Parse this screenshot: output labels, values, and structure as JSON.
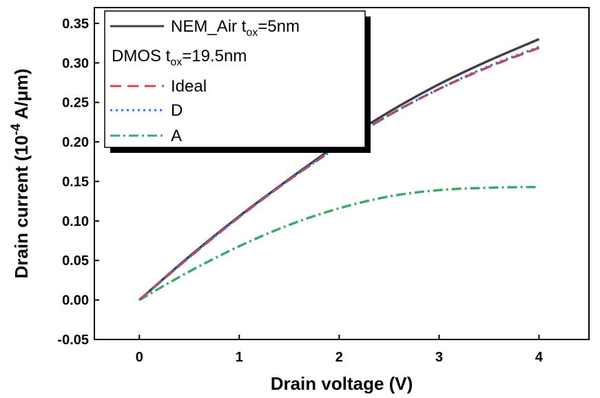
{
  "chart_data": {
    "type": "line",
    "xlabel": "Drain voltage (V)",
    "ylabel": {
      "prefix": "Drain current (10",
      "exponent": "-4",
      "suffix": " A/μm)"
    },
    "xlim": [
      -0.45,
      4.5
    ],
    "ylim": [
      -0.05,
      0.37
    ],
    "x_ticks": [
      0,
      1,
      2,
      3,
      4
    ],
    "x_tick_labels": [
      "0",
      "1",
      "2",
      "3",
      "4"
    ],
    "y_ticks": [
      -0.05,
      0.0,
      0.05,
      0.1,
      0.15,
      0.2,
      0.25,
      0.3,
      0.35
    ],
    "y_tick_labels": [
      "-0.05",
      "0.00",
      "0.05",
      "0.10",
      "0.15",
      "0.20",
      "0.25",
      "0.30",
      "0.35"
    ],
    "grid": false,
    "legend_position": "top-left",
    "legend_group_title": {
      "base": "DMOS t",
      "sub": "ox",
      "rest": "=19.5nm"
    },
    "series": [
      {
        "name": "NEM_Air t",
        "name_sub": "ox",
        "name_rest": "=5nm",
        "color": "#404040",
        "dash": "solid",
        "x": [
          0,
          0.5,
          1.0,
          1.5,
          2.0,
          2.5,
          3.0,
          3.5,
          4.0
        ],
        "y": [
          0.0,
          0.055,
          0.106,
          0.153,
          0.198,
          0.238,
          0.273,
          0.303,
          0.33
        ]
      },
      {
        "name": "Ideal",
        "color": "#e04040",
        "dash": "dashed",
        "x": [
          0,
          0.5,
          1.0,
          1.5,
          2.0,
          2.5,
          3.0,
          3.5,
          4.0
        ],
        "y": [
          0.0,
          0.054,
          0.105,
          0.152,
          0.195,
          0.234,
          0.267,
          0.295,
          0.319
        ]
      },
      {
        "name": "D",
        "color": "#3a6fd8",
        "dash": "dotted",
        "x": [
          0,
          0.5,
          1.0,
          1.5,
          2.0,
          2.5,
          3.0,
          3.5,
          4.0
        ],
        "y": [
          0.0,
          0.054,
          0.105,
          0.152,
          0.195,
          0.234,
          0.267,
          0.296,
          0.32
        ]
      },
      {
        "name": "A",
        "color": "#3aaa6a",
        "dash": "dash-dot",
        "x": [
          0,
          0.5,
          1.0,
          1.5,
          2.0,
          2.5,
          3.0,
          3.5,
          4.0
        ],
        "y": [
          0.0,
          0.036,
          0.068,
          0.095,
          0.116,
          0.131,
          0.139,
          0.142,
          0.143
        ]
      }
    ]
  }
}
